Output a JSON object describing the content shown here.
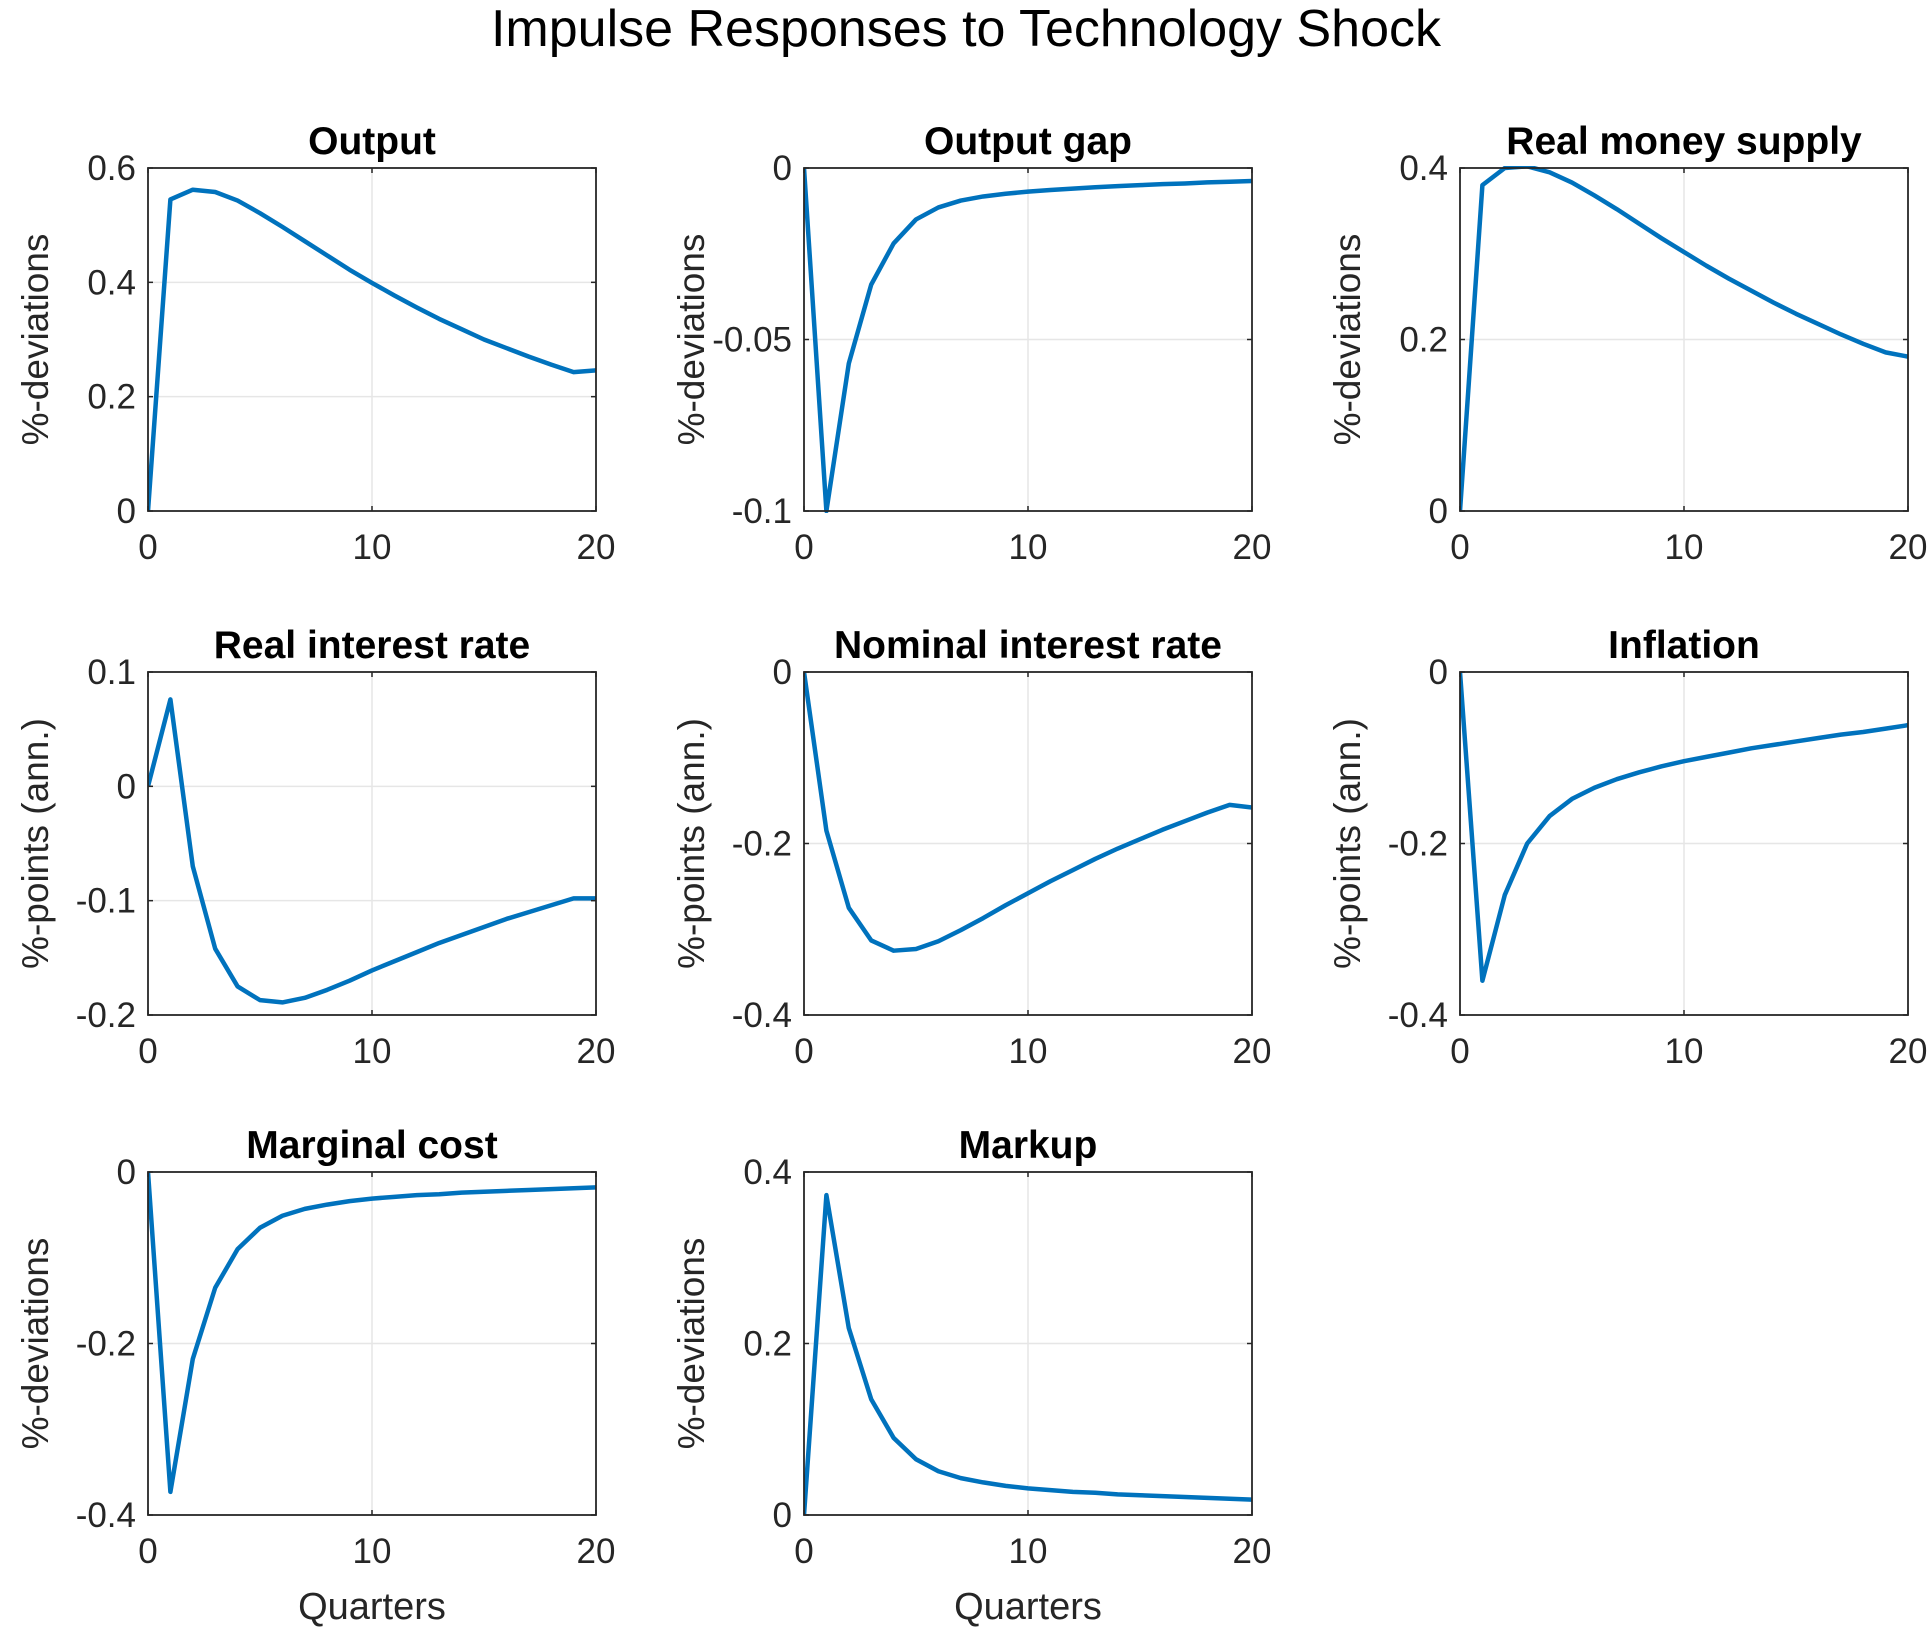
{
  "figure": {
    "title": "Impulse Responses to Technology Shock",
    "xlabel": "Quarters",
    "line_color": "#0072BD",
    "grid_color": "#e6e6e6"
  },
  "chart_data": [
    {
      "type": "line",
      "title": "Output",
      "ylabel": "%-deviations",
      "xlabel": "",
      "xlim": [
        0,
        20
      ],
      "ylim": [
        0,
        0.6
      ],
      "xticks": [
        0,
        10,
        20
      ],
      "xtick_labels": [
        "0",
        "10",
        "20"
      ],
      "yticks": [
        0,
        0.2,
        0.4,
        0.6
      ],
      "ytick_labels": [
        "0",
        "0.2",
        "0.4",
        "0.6"
      ],
      "grid": true,
      "x": [
        0,
        1,
        2,
        3,
        4,
        5,
        6,
        7,
        8,
        9,
        10,
        11,
        12,
        13,
        14,
        15,
        16,
        17,
        18,
        19,
        20
      ],
      "values": [
        0,
        0.545,
        0.562,
        0.558,
        0.543,
        0.521,
        0.497,
        0.472,
        0.447,
        0.422,
        0.399,
        0.377,
        0.356,
        0.336,
        0.318,
        0.3,
        0.285,
        0.27,
        0.256,
        0.243,
        0.246
      ]
    },
    {
      "type": "line",
      "title": "Output gap",
      "ylabel": "%-deviations",
      "xlabel": "",
      "xlim": [
        0,
        20
      ],
      "ylim": [
        -0.1,
        0
      ],
      "xticks": [
        0,
        10,
        20
      ],
      "xtick_labels": [
        "0",
        "10",
        "20"
      ],
      "yticks": [
        -0.1,
        -0.05,
        0
      ],
      "ytick_labels": [
        "-0.1",
        "-0.05",
        "0"
      ],
      "grid": true,
      "x": [
        0,
        1,
        2,
        3,
        4,
        5,
        6,
        7,
        8,
        9,
        10,
        11,
        12,
        13,
        14,
        15,
        16,
        17,
        18,
        19,
        20
      ],
      "values": [
        0,
        -0.1,
        -0.057,
        -0.034,
        -0.022,
        -0.015,
        -0.0115,
        -0.0095,
        -0.0083,
        -0.0075,
        -0.0069,
        -0.0064,
        -0.006,
        -0.0056,
        -0.0053,
        -0.005,
        -0.0047,
        -0.0045,
        -0.0042,
        -0.004,
        -0.0038
      ]
    },
    {
      "type": "line",
      "title": "Real money supply",
      "ylabel": "%-deviations",
      "xlabel": "",
      "xlim": [
        0,
        20
      ],
      "ylim": [
        0,
        0.4
      ],
      "xticks": [
        0,
        10,
        20
      ],
      "xtick_labels": [
        "0",
        "10",
        "20"
      ],
      "yticks": [
        0,
        0.2,
        0.4
      ],
      "ytick_labels": [
        "0",
        "0.2",
        "0.4"
      ],
      "grid": true,
      "x": [
        0,
        1,
        2,
        3,
        4,
        5,
        6,
        7,
        8,
        9,
        10,
        11,
        12,
        13,
        14,
        15,
        16,
        17,
        18,
        19,
        20
      ],
      "values": [
        0,
        0.38,
        0.4,
        0.402,
        0.395,
        0.383,
        0.368,
        0.352,
        0.335,
        0.318,
        0.302,
        0.286,
        0.271,
        0.257,
        0.243,
        0.23,
        0.218,
        0.206,
        0.195,
        0.185,
        0.18
      ]
    },
    {
      "type": "line",
      "title": "Real interest rate",
      "ylabel": "%-points (ann.)",
      "xlabel": "",
      "xlim": [
        0,
        20
      ],
      "ylim": [
        -0.2,
        0.1
      ],
      "xticks": [
        0,
        10,
        20
      ],
      "xtick_labels": [
        "0",
        "10",
        "20"
      ],
      "yticks": [
        -0.2,
        -0.1,
        0,
        0.1
      ],
      "ytick_labels": [
        "-0.2",
        "-0.1",
        "0",
        "0.1"
      ],
      "grid": true,
      "x": [
        0,
        1,
        2,
        3,
        4,
        5,
        6,
        7,
        8,
        9,
        10,
        11,
        12,
        13,
        14,
        15,
        16,
        17,
        18,
        19,
        20
      ],
      "values": [
        0,
        0.076,
        -0.07,
        -0.142,
        -0.175,
        -0.187,
        -0.189,
        -0.185,
        -0.178,
        -0.17,
        -0.161,
        -0.153,
        -0.145,
        -0.137,
        -0.13,
        -0.123,
        -0.116,
        -0.11,
        -0.104,
        -0.098,
        -0.098
      ]
    },
    {
      "type": "line",
      "title": "Nominal interest rate",
      "ylabel": "%-points (ann.)",
      "xlabel": "",
      "xlim": [
        0,
        20
      ],
      "ylim": [
        -0.4,
        0
      ],
      "xticks": [
        0,
        10,
        20
      ],
      "xtick_labels": [
        "0",
        "10",
        "20"
      ],
      "yticks": [
        -0.4,
        -0.2,
        0
      ],
      "ytick_labels": [
        "-0.4",
        "-0.2",
        "0"
      ],
      "grid": true,
      "x": [
        0,
        1,
        2,
        3,
        4,
        5,
        6,
        7,
        8,
        9,
        10,
        11,
        12,
        13,
        14,
        15,
        16,
        17,
        18,
        19,
        20
      ],
      "values": [
        0,
        -0.185,
        -0.275,
        -0.313,
        -0.325,
        -0.323,
        -0.314,
        -0.301,
        -0.287,
        -0.272,
        -0.258,
        -0.244,
        -0.231,
        -0.218,
        -0.206,
        -0.195,
        -0.184,
        -0.174,
        -0.164,
        -0.155,
        -0.158
      ]
    },
    {
      "type": "line",
      "title": "Inflation",
      "ylabel": "%-points (ann.)",
      "xlabel": "",
      "xlim": [
        0,
        20
      ],
      "ylim": [
        -0.4,
        0
      ],
      "xticks": [
        0,
        10,
        20
      ],
      "xtick_labels": [
        "0",
        "10",
        "20"
      ],
      "yticks": [
        -0.4,
        -0.2,
        0
      ],
      "ytick_labels": [
        "-0.4",
        "-0.2",
        "0"
      ],
      "grid": true,
      "x": [
        0,
        1,
        2,
        3,
        4,
        5,
        6,
        7,
        8,
        9,
        10,
        11,
        12,
        13,
        14,
        15,
        16,
        17,
        18,
        19,
        20
      ],
      "values": [
        0,
        -0.36,
        -0.26,
        -0.2,
        -0.168,
        -0.148,
        -0.135,
        -0.125,
        -0.117,
        -0.11,
        -0.104,
        -0.099,
        -0.094,
        -0.089,
        -0.085,
        -0.081,
        -0.077,
        -0.073,
        -0.07,
        -0.066,
        -0.062
      ]
    },
    {
      "type": "line",
      "title": "Marginal cost",
      "ylabel": "%-deviations",
      "xlabel": "Quarters",
      "xlim": [
        0,
        20
      ],
      "ylim": [
        -0.4,
        0
      ],
      "xticks": [
        0,
        10,
        20
      ],
      "xtick_labels": [
        "0",
        "10",
        "20"
      ],
      "yticks": [
        -0.4,
        -0.2,
        0
      ],
      "ytick_labels": [
        "-0.4",
        "-0.2",
        "0"
      ],
      "grid": true,
      "x": [
        0,
        1,
        2,
        3,
        4,
        5,
        6,
        7,
        8,
        9,
        10,
        11,
        12,
        13,
        14,
        15,
        16,
        17,
        18,
        19,
        20
      ],
      "values": [
        0,
        -0.373,
        -0.218,
        -0.135,
        -0.09,
        -0.065,
        -0.051,
        -0.043,
        -0.038,
        -0.034,
        -0.031,
        -0.029,
        -0.027,
        -0.026,
        -0.024,
        -0.023,
        -0.022,
        -0.021,
        -0.02,
        -0.019,
        -0.018
      ]
    },
    {
      "type": "line",
      "title": "Markup",
      "ylabel": "%-deviations",
      "xlabel": "Quarters",
      "xlim": [
        0,
        20
      ],
      "ylim": [
        0,
        0.4
      ],
      "xticks": [
        0,
        10,
        20
      ],
      "xtick_labels": [
        "0",
        "10",
        "20"
      ],
      "yticks": [
        0,
        0.2,
        0.4
      ],
      "ytick_labels": [
        "0",
        "0.2",
        "0.4"
      ],
      "grid": true,
      "x": [
        0,
        1,
        2,
        3,
        4,
        5,
        6,
        7,
        8,
        9,
        10,
        11,
        12,
        13,
        14,
        15,
        16,
        17,
        18,
        19,
        20
      ],
      "values": [
        0,
        0.373,
        0.218,
        0.135,
        0.09,
        0.065,
        0.051,
        0.043,
        0.038,
        0.034,
        0.031,
        0.029,
        0.027,
        0.026,
        0.024,
        0.023,
        0.022,
        0.021,
        0.02,
        0.019,
        0.018
      ]
    }
  ]
}
